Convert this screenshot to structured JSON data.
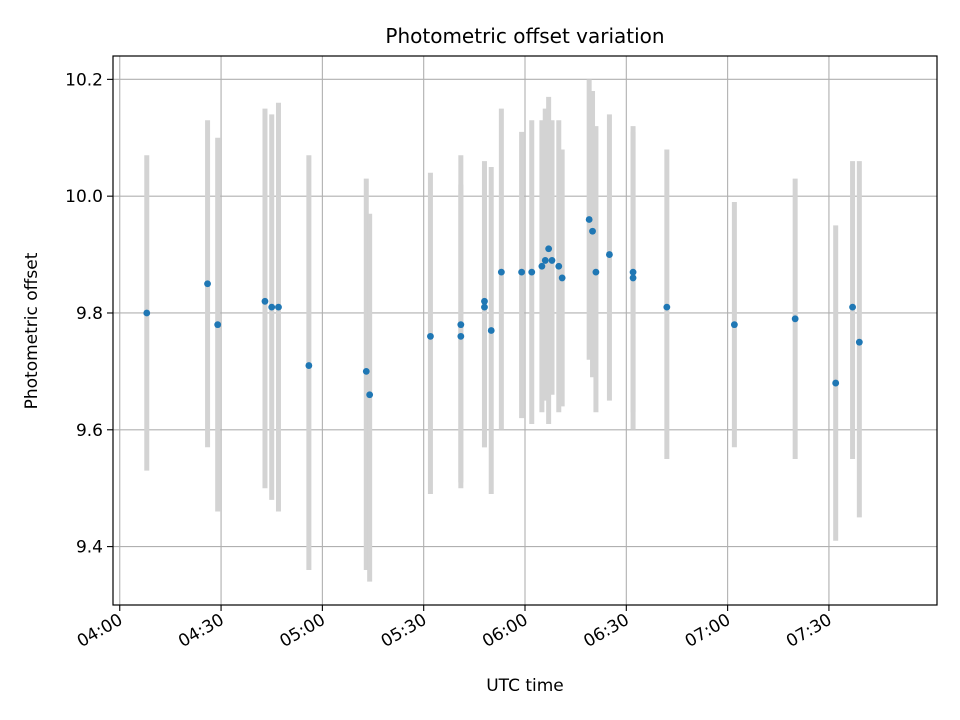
{
  "chart_data": {
    "type": "scatter",
    "title": "Photometric offset variation",
    "xlabel": "UTC time",
    "ylabel": "Photometric offset",
    "x_is_time": true,
    "xlim": [
      "03:58",
      "08:02"
    ],
    "ylim": [
      9.3,
      10.24
    ],
    "x_ticks": [
      "04:00",
      "04:30",
      "05:00",
      "05:30",
      "06:00",
      "06:30",
      "07:00",
      "07:30"
    ],
    "y_ticks": [
      9.4,
      9.6,
      9.8,
      10.0,
      10.2
    ],
    "y_tick_labels": [
      "9.4",
      "9.6",
      "9.8",
      "10.0",
      "10.2"
    ],
    "grid": true,
    "marker_color": "#1f77b4",
    "errorbar_color": "#d3d3d3",
    "points": [
      {
        "t": "04:08",
        "y": 9.8,
        "lo": 9.53,
        "hi": 10.07
      },
      {
        "t": "04:26",
        "y": 9.85,
        "lo": 9.57,
        "hi": 10.13
      },
      {
        "t": "04:29",
        "y": 9.78,
        "lo": 9.46,
        "hi": 10.1
      },
      {
        "t": "04:43",
        "y": 9.82,
        "lo": 9.5,
        "hi": 10.15
      },
      {
        "t": "04:45",
        "y": 9.81,
        "lo": 9.48,
        "hi": 10.14
      },
      {
        "t": "04:47",
        "y": 9.81,
        "lo": 9.46,
        "hi": 10.16
      },
      {
        "t": "04:56",
        "y": 9.71,
        "lo": 9.36,
        "hi": 10.07
      },
      {
        "t": "05:13",
        "y": 9.7,
        "lo": 9.36,
        "hi": 10.03
      },
      {
        "t": "05:14",
        "y": 9.66,
        "lo": 9.34,
        "hi": 9.97
      },
      {
        "t": "05:32",
        "y": 9.76,
        "lo": 9.49,
        "hi": 10.04
      },
      {
        "t": "05:41",
        "y": 9.76,
        "lo": 9.5,
        "hi": 10.02
      },
      {
        "t": "05:41",
        "y": 9.78,
        "lo": 9.51,
        "hi": 10.07
      },
      {
        "t": "05:48",
        "y": 9.82,
        "lo": 9.57,
        "hi": 10.06
      },
      {
        "t": "05:48",
        "y": 9.81,
        "lo": 9.57,
        "hi": 10.05
      },
      {
        "t": "05:50",
        "y": 9.77,
        "lo": 9.49,
        "hi": 10.05
      },
      {
        "t": "05:53",
        "y": 9.87,
        "lo": 9.6,
        "hi": 10.15
      },
      {
        "t": "05:59",
        "y": 9.87,
        "lo": 9.62,
        "hi": 10.11
      },
      {
        "t": "06:02",
        "y": 9.87,
        "lo": 9.61,
        "hi": 10.13
      },
      {
        "t": "06:05",
        "y": 9.88,
        "lo": 9.63,
        "hi": 10.13
      },
      {
        "t": "06:06",
        "y": 9.89,
        "lo": 9.65,
        "hi": 10.15
      },
      {
        "t": "06:07",
        "y": 9.91,
        "lo": 9.61,
        "hi": 10.17
      },
      {
        "t": "06:08",
        "y": 9.89,
        "lo": 9.66,
        "hi": 10.13
      },
      {
        "t": "06:10",
        "y": 9.88,
        "lo": 9.63,
        "hi": 10.13
      },
      {
        "t": "06:11",
        "y": 9.86,
        "lo": 9.64,
        "hi": 10.08
      },
      {
        "t": "06:19",
        "y": 9.96,
        "lo": 9.72,
        "hi": 10.2
      },
      {
        "t": "06:20",
        "y": 9.94,
        "lo": 9.69,
        "hi": 10.18
      },
      {
        "t": "06:21",
        "y": 9.87,
        "lo": 9.63,
        "hi": 10.12
      },
      {
        "t": "06:25",
        "y": 9.9,
        "lo": 9.65,
        "hi": 10.14
      },
      {
        "t": "06:32",
        "y": 9.87,
        "lo": 9.63,
        "hi": 10.11
      },
      {
        "t": "06:32",
        "y": 9.86,
        "lo": 9.6,
        "hi": 10.12
      },
      {
        "t": "06:42",
        "y": 9.81,
        "lo": 9.55,
        "hi": 10.08
      },
      {
        "t": "07:02",
        "y": 9.78,
        "lo": 9.57,
        "hi": 9.99
      },
      {
        "t": "07:20",
        "y": 9.79,
        "lo": 9.55,
        "hi": 10.03
      },
      {
        "t": "07:32",
        "y": 9.68,
        "lo": 9.41,
        "hi": 9.95
      },
      {
        "t": "07:37",
        "y": 9.81,
        "lo": 9.55,
        "hi": 10.06
      },
      {
        "t": "07:39",
        "y": 9.75,
        "lo": 9.45,
        "hi": 10.06
      }
    ]
  }
}
